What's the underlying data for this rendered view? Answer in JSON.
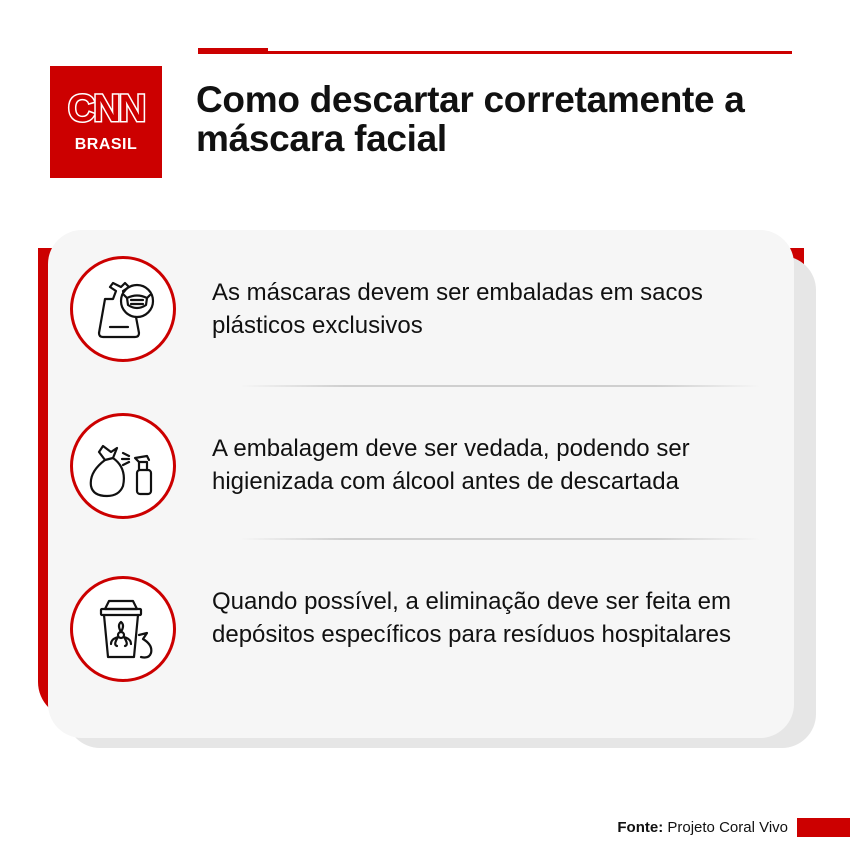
{
  "brand": {
    "logo_text": "CNN",
    "logo_subtext": "BRASIL",
    "accent_color": "#cc0000"
  },
  "header": {
    "title": "Como descartar corretamente a máscara facial"
  },
  "items": [
    {
      "icon": "mask-in-bag-icon",
      "text": "As máscaras devem ser embaladas em sacos plásticos exclusivos"
    },
    {
      "icon": "sealed-bag-spray-icon",
      "text": "A embalagem deve ser vedada, podendo ser higienizada com álcool antes de descartada"
    },
    {
      "icon": "biohazard-bin-icon",
      "text": "Quando possível, a eliminação deve ser feita em depósitos específicos para resíduos hospitalares"
    }
  ],
  "footer": {
    "source_label": "Fonte:",
    "source_value": "Projeto Coral Vivo"
  }
}
